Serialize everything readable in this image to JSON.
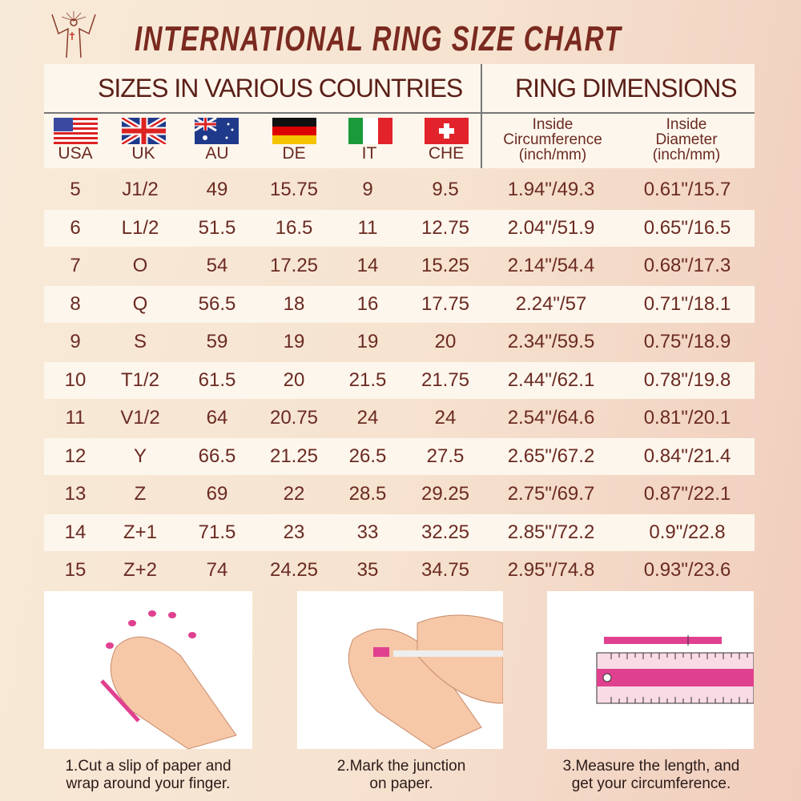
{
  "title": "INTERNATIONAL RING SIZE CHART",
  "header": {
    "countries_title": "SIZES IN VARIOUS COUNTRIES",
    "dimensions_title": "RING DIMENSIONS",
    "countries": [
      {
        "code": "USA",
        "flag": "us-flag-icon"
      },
      {
        "code": "UK",
        "flag": "uk-flag-icon"
      },
      {
        "code": "AU",
        "flag": "au-flag-icon"
      },
      {
        "code": "DE",
        "flag": "de-flag-icon"
      },
      {
        "code": "IT",
        "flag": "it-flag-icon"
      },
      {
        "code": "CHE",
        "flag": "ch-flag-icon"
      }
    ],
    "circumference": [
      "Inside",
      "Circumference",
      "(inch/mm)"
    ],
    "diameter": [
      "Inside",
      "Diameter",
      "(inch/mm)"
    ]
  },
  "rows": [
    [
      "5",
      "J1/2",
      "49",
      "15.75",
      "9",
      "9.5",
      "1.94\"/49.3",
      "0.61\"/15.7"
    ],
    [
      "6",
      "L1/2",
      "51.5",
      "16.5",
      "11",
      "12.75",
      "2.04\"/51.9",
      "0.65\"/16.5"
    ],
    [
      "7",
      "O",
      "54",
      "17.25",
      "14",
      "15.25",
      "2.14\"/54.4",
      "0.68\"/17.3"
    ],
    [
      "8",
      "Q",
      "56.5",
      "18",
      "16",
      "17.75",
      "2.24\"/57",
      "0.71\"/18.1"
    ],
    [
      "9",
      "S",
      "59",
      "19",
      "19",
      "20",
      "2.34\"/59.5",
      "0.75\"/18.9"
    ],
    [
      "10",
      "T1/2",
      "61.5",
      "20",
      "21.5",
      "21.75",
      "2.44\"/62.1",
      "0.78\"/19.8"
    ],
    [
      "11",
      "V1/2",
      "64",
      "20.75",
      "24",
      "24",
      "2.54\"/64.6",
      "0.81\"/20.1"
    ],
    [
      "12",
      "Y",
      "66.5",
      "21.25",
      "26.5",
      "27.5",
      "2.65\"/67.2",
      "0.84\"/21.4"
    ],
    [
      "13",
      "Z",
      "69",
      "22",
      "28.5",
      "29.25",
      "2.75\"/69.7",
      "0.87\"/22.1"
    ],
    [
      "14",
      "Z+1",
      "71.5",
      "23",
      "33",
      "32.25",
      "2.85\"/72.2",
      "0.9\"/22.8"
    ],
    [
      "15",
      "Z+2",
      "74",
      "24.25",
      "35",
      "34.75",
      "2.95\"/74.8",
      "0.93\"/23.6"
    ]
  ],
  "steps": [
    {
      "lines": [
        "1.Cut a slip of paper and",
        "wrap around your finger."
      ]
    },
    {
      "lines": [
        "2.Mark the junction",
        "on paper."
      ]
    },
    {
      "lines": [
        "3.Measure the length, and",
        "get your circumference."
      ]
    }
  ],
  "colors": {
    "text": "#6a2a22",
    "accent": "#e0418f"
  }
}
